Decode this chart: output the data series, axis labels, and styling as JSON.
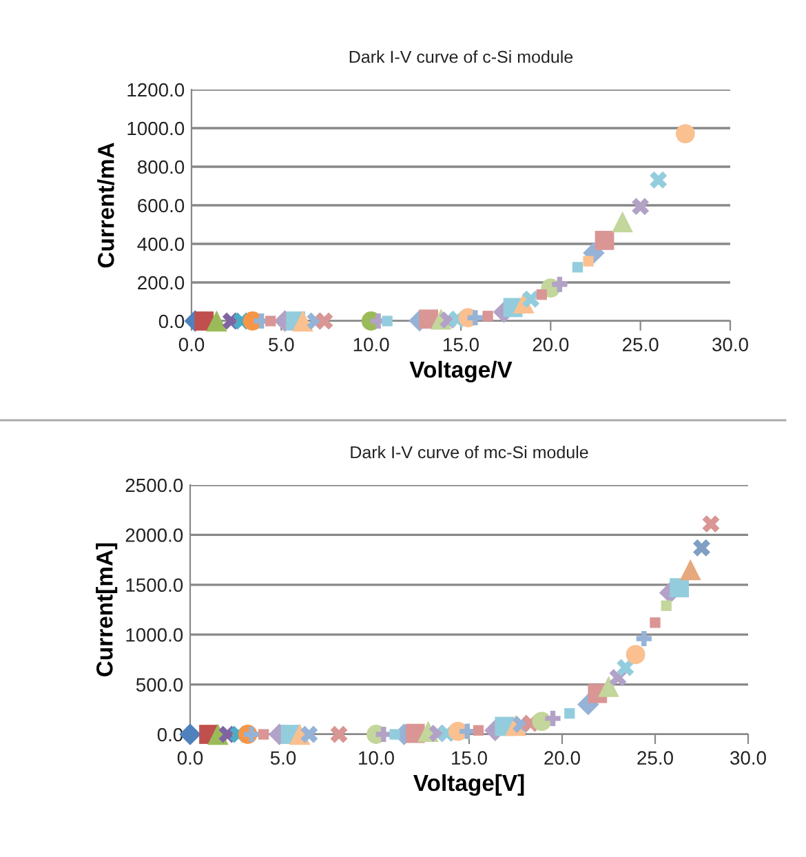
{
  "chart_data": [
    {
      "type": "scatter",
      "title": "Dark I-V curve of c-Si module",
      "xlabel": "Voltage/V",
      "ylabel": "Current/mA",
      "grid": "y",
      "legend": false,
      "xlim": [
        0,
        30
      ],
      "xticks": [
        {
          "value": 0,
          "label": "0.0"
        },
        {
          "value": 5,
          "label": "5.0"
        },
        {
          "value": 10,
          "label": "10.0"
        },
        {
          "value": 15,
          "label": "15.0"
        },
        {
          "value": 20,
          "label": "20.0"
        },
        {
          "value": 25,
          "label": "25.0"
        },
        {
          "value": 30,
          "label": "30.0"
        }
      ],
      "ylim": [
        0,
        1200
      ],
      "yticks": [
        {
          "value": 0,
          "label": "0.0"
        },
        {
          "value": 200,
          "label": "200.0"
        },
        {
          "value": 400,
          "label": "400.0"
        },
        {
          "value": 600,
          "label": "600.0"
        },
        {
          "value": 800,
          "label": "800.0"
        },
        {
          "value": 1000,
          "label": "1000.0"
        },
        {
          "value": 1200,
          "label": "1200.0"
        }
      ],
      "series": [
        {
          "marker": "diamond",
          "x": [
            0.2,
            5.2,
            12.7,
            17.4,
            22.4
          ],
          "values": [
            0,
            0,
            2,
            46,
            353
          ],
          "colors": [
            "#4f81bd",
            "#b3a2c7",
            "#95b3d7",
            "#b3a2c7",
            "#95b3d7"
          ]
        },
        {
          "marker": "square",
          "x": [
            0.7,
            5.8,
            13.2,
            17.9,
            23.0
          ],
          "values": [
            0,
            0,
            10,
            70,
            418
          ],
          "colors": [
            "#c0504d",
            "#93cddd",
            "#d99694",
            "#93cddd",
            "#d99694"
          ]
        },
        {
          "marker": "triangle",
          "x": [
            1.4,
            6.2,
            13.9,
            18.5,
            24.0
          ],
          "values": [
            0,
            0,
            10,
            94,
            514
          ],
          "colors": [
            "#9bbb59",
            "#fac090",
            "#c3d69b",
            "#fac090",
            "#c3d69b"
          ]
        },
        {
          "marker": "cross",
          "x": [
            2.2,
            2.8,
            6.9,
            7.4,
            14.3,
            14.8,
            18.9,
            25.0,
            26.0
          ],
          "values": [
            0,
            0,
            0,
            0,
            5,
            10,
            113,
            594,
            731
          ],
          "colors": [
            "#8064a2",
            "#4bacc6",
            "#95b3d7",
            "#d99694",
            "#b3a2c7",
            "#93cddd",
            "#93cddd",
            "#b3a2c7",
            "#93cddd"
          ]
        },
        {
          "marker": "circle",
          "x": [
            3.4,
            10.0,
            15.4,
            20.0,
            27.5
          ],
          "values": [
            0,
            0,
            17,
            171,
            971
          ],
          "colors": [
            "#f79646",
            "#9bbb59",
            "#fac090",
            "#c3d69b",
            "#fac090"
          ]
        },
        {
          "marker": "plus",
          "x": [
            3.9,
            10.4,
            15.8,
            20.5
          ],
          "values": [
            0,
            0,
            17,
            190
          ],
          "colors": [
            "#95b3d7",
            "#b3a2c7",
            "#95b3d7",
            "#b3a2c7"
          ]
        },
        {
          "marker": "square",
          "x": [
            4.4,
            10.9,
            16.5,
            19.5,
            21.5,
            22.1
          ],
          "values": [
            0,
            0,
            26,
            137,
            279,
            310
          ],
          "colors": [
            "#d99694",
            "#93cddd",
            "#d99694",
            "#d99694",
            "#93cddd",
            "#fac090"
          ]
        }
      ]
    },
    {
      "type": "scatter",
      "title": "Dark I-V curve of mc-Si module",
      "xlabel": "Voltage[V]",
      "ylabel": "Current[mA]",
      "grid": "y",
      "legend": false,
      "xlim": [
        0,
        30
      ],
      "xticks": [
        {
          "value": 0,
          "label": "0.0"
        },
        {
          "value": 5,
          "label": "5.0"
        },
        {
          "value": 10,
          "label": "10.0"
        },
        {
          "value": 15,
          "label": "15.0"
        },
        {
          "value": 20,
          "label": "20.0"
        },
        {
          "value": 25,
          "label": "25.0"
        },
        {
          "value": 30,
          "label": "30.0"
        }
      ],
      "ylim": [
        0,
        2500
      ],
      "yticks": [
        {
          "value": 0,
          "label": "0.0"
        },
        {
          "value": 500,
          "label": "500.0"
        },
        {
          "value": 1000,
          "label": "1000.0"
        },
        {
          "value": 1500,
          "label": "1500.0"
        },
        {
          "value": 2000,
          "label": "2000.0"
        },
        {
          "value": 2500,
          "label": "2500.0"
        }
      ],
      "series": [
        {
          "marker": "diamond",
          "x": [
            0.0,
            4.8,
            11.5,
            16.4,
            21.4,
            25.8
          ],
          "values": [
            0,
            0,
            0,
            40,
            300,
            1420
          ],
          "colors": [
            "#4f81bd",
            "#b3a2c7",
            "#95b3d7",
            "#b3a2c7",
            "#95b3d7",
            "#b3a2c7"
          ]
        },
        {
          "marker": "square",
          "x": [
            1.0,
            5.4,
            12.1,
            16.9,
            21.9,
            26.3
          ],
          "values": [
            0,
            0,
            10,
            80,
            410,
            1470
          ],
          "colors": [
            "#c0504d",
            "#93cddd",
            "#d99694",
            "#93cddd",
            "#d99694",
            "#93cddd"
          ]
        },
        {
          "marker": "triangle",
          "x": [
            1.5,
            5.9,
            12.8,
            17.5,
            22.5,
            26.9
          ],
          "values": [
            0,
            0,
            30,
            90,
            480,
            1650
          ],
          "colors": [
            "#9bbb59",
            "#fac090",
            "#c3d69b",
            "#fac090",
            "#c3d69b",
            "#e6a87c"
          ]
        },
        {
          "marker": "cross",
          "x": [
            2.0,
            2.6,
            6.4,
            8.0,
            13.3,
            13.8,
            17.8,
            18.3,
            23.0,
            23.4,
            27.5,
            28.0
          ],
          "values": [
            0,
            0,
            0,
            0,
            10,
            10,
            100,
            110,
            570,
            670,
            1870,
            2110
          ],
          "colors": [
            "#8064a2",
            "#4bacc6",
            "#95b3d7",
            "#d99694",
            "#b3a2c7",
            "#93cddd",
            "#95b3d7",
            "#d99694",
            "#b3a2c7",
            "#93cddd",
            "#7f9fc4",
            "#d99694"
          ]
        },
        {
          "marker": "circle",
          "x": [
            3.1,
            10.0,
            14.4,
            18.9,
            23.95
          ],
          "values": [
            0,
            0,
            30,
            130,
            800
          ],
          "colors": [
            "#f79646",
            "#c3d69b",
            "#fac090",
            "#c3d69b",
            "#fac090"
          ]
        },
        {
          "marker": "plus",
          "x": [
            3.3,
            10.4,
            14.9,
            19.5,
            24.4
          ],
          "values": [
            0,
            0,
            30,
            160,
            960
          ],
          "colors": [
            "#95b3d7",
            "#b3a2c7",
            "#95b3d7",
            "#b3a2c7",
            "#95b3d7"
          ]
        },
        {
          "marker": "square",
          "x": [
            3.95,
            11.0,
            15.5,
            20.4,
            25.0,
            25.6
          ],
          "values": [
            0,
            0,
            40,
            210,
            1120,
            1290
          ],
          "colors": [
            "#d99694",
            "#93cddd",
            "#d99694",
            "#93cddd",
            "#d99694",
            "#c3d69b"
          ]
        }
      ]
    }
  ]
}
